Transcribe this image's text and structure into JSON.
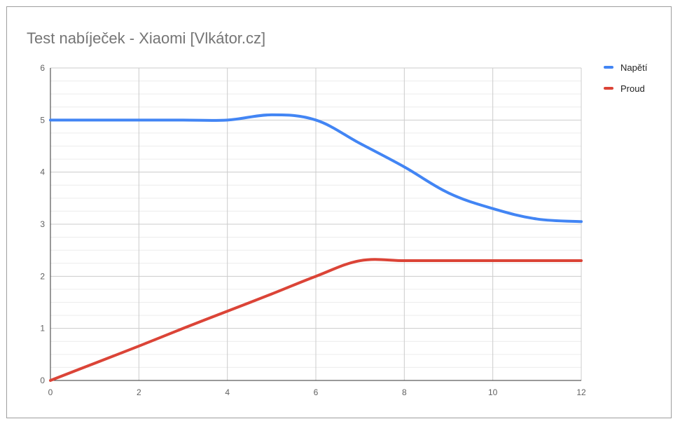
{
  "chart_data": {
    "type": "line",
    "title": "Test nabíječek - Xiaomi [Vlkátor.cz]",
    "xlabel": "",
    "ylabel": "",
    "xlim": [
      0,
      12
    ],
    "ylim": [
      0,
      6
    ],
    "x_ticks": [
      "0",
      "2",
      "4",
      "6",
      "8",
      "10",
      "12"
    ],
    "y_ticks": [
      "0",
      "1",
      "2",
      "3",
      "4",
      "5",
      "6"
    ],
    "grid": true,
    "legend_position": "right",
    "series": [
      {
        "name": "Napětí",
        "color": "#4285f4",
        "x": [
          0,
          1,
          2,
          3,
          4,
          5,
          6,
          7,
          8,
          9,
          10,
          11,
          12
        ],
        "y": [
          5.0,
          5.0,
          5.0,
          5.0,
          5.0,
          5.1,
          5.0,
          4.55,
          4.1,
          3.6,
          3.3,
          3.1,
          3.05
        ]
      },
      {
        "name": "Proud",
        "color": "#db4437",
        "x": [
          0,
          1,
          2,
          3,
          4,
          5,
          6,
          7,
          8,
          9,
          10,
          11,
          12
        ],
        "y": [
          0.0,
          0.33,
          0.66,
          1.0,
          1.33,
          1.66,
          2.0,
          2.3,
          2.3,
          2.3,
          2.3,
          2.3,
          2.3
        ]
      }
    ]
  }
}
